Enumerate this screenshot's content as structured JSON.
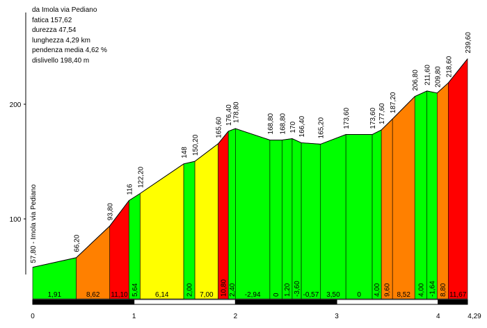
{
  "chart_data": {
    "type": "area",
    "title_lines": [
      "da Imola via Pediano",
      "fatica 157,62",
      "durezza 47,54",
      "lunghezza 4,29 km",
      "pendenza media 4,62 %",
      "dislivello 198,40 m"
    ],
    "start_label": "57,80 - Imola via Pediano",
    "x_ticks": [
      "0",
      "1",
      "2",
      "3",
      "4"
    ],
    "x_end_label": "4,29",
    "y_ticks": [
      "100",
      "200"
    ],
    "ylim": [
      35,
      256
    ],
    "xlim": [
      0,
      4.29
    ],
    "profile": [
      {
        "x": 0.0,
        "alt": 57.8,
        "label": ""
      },
      {
        "x": 0.43,
        "alt": 66.2,
        "label": "66,20"
      },
      {
        "x": 0.76,
        "alt": 93.8,
        "label": "93,80"
      },
      {
        "x": 0.95,
        "alt": 116.0,
        "label": "116"
      },
      {
        "x": 1.06,
        "alt": 122.2,
        "label": "122,20"
      },
      {
        "x": 1.49,
        "alt": 148.0,
        "label": "148"
      },
      {
        "x": 1.6,
        "alt": 150.2,
        "label": "150,20"
      },
      {
        "x": 1.83,
        "alt": 165.6,
        "label": "165,60"
      },
      {
        "x": 1.93,
        "alt": 176.4,
        "label": "176,40"
      },
      {
        "x": 2.0,
        "alt": 178.8,
        "label": "178,80"
      },
      {
        "x": 2.34,
        "alt": 168.8,
        "label": "168,80"
      },
      {
        "x": 2.46,
        "alt": 168.8,
        "label": "168,80"
      },
      {
        "x": 2.56,
        "alt": 170.0,
        "label": "170"
      },
      {
        "x": 2.65,
        "alt": 166.4,
        "label": "166,40"
      },
      {
        "x": 2.84,
        "alt": 165.2,
        "label": "165,20"
      },
      {
        "x": 3.09,
        "alt": 173.6,
        "label": "173,60"
      },
      {
        "x": 3.35,
        "alt": 173.6,
        "label": "173,60"
      },
      {
        "x": 3.44,
        "alt": 177.6,
        "label": "177,60"
      },
      {
        "x": 3.55,
        "alt": 187.2,
        "label": "187,20"
      },
      {
        "x": 3.77,
        "alt": 206.8,
        "label": "206,80"
      },
      {
        "x": 3.89,
        "alt": 211.6,
        "label": "211,60"
      },
      {
        "x": 3.99,
        "alt": 209.8,
        "label": "209,80"
      },
      {
        "x": 4.1,
        "alt": 218.6,
        "label": "218,60"
      },
      {
        "x": 4.29,
        "alt": 239.6,
        "label": "239,60"
      }
    ],
    "segments": [
      {
        "grade": "1,91",
        "color": "#00ff00"
      },
      {
        "grade": "8,62",
        "color": "#ff8000"
      },
      {
        "grade": "11,10",
        "color": "#ff0000"
      },
      {
        "grade": "5,64",
        "color": "#00ff00"
      },
      {
        "grade": "6,14",
        "color": "#ffff00"
      },
      {
        "grade": "2,00",
        "color": "#00ff00"
      },
      {
        "grade": "7,00",
        "color": "#ffff00"
      },
      {
        "grade": "10,80",
        "color": "#ff0000"
      },
      {
        "grade": "2,40",
        "color": "#00ff00"
      },
      {
        "grade": "-2,94",
        "color": "#00ff00"
      },
      {
        "grade": "0",
        "color": "#00ff00"
      },
      {
        "grade": "1,20",
        "color": "#00ff00"
      },
      {
        "grade": "-3,60",
        "color": "#00ff00"
      },
      {
        "grade": "-0,57",
        "color": "#00ff00"
      },
      {
        "grade": "3,50",
        "color": "#00ff00"
      },
      {
        "grade": "0",
        "color": "#00ff00"
      },
      {
        "grade": "4,00",
        "color": "#00ff00"
      },
      {
        "grade": "9,60",
        "color": "#ff8000"
      },
      {
        "grade": "8,52",
        "color": "#ff8000"
      },
      {
        "grade": "4,00",
        "color": "#00ff00"
      },
      {
        "grade": "-1,64",
        "color": "#00ff00"
      },
      {
        "grade": "8,80",
        "color": "#ff8000"
      },
      {
        "grade": "11,67",
        "color": "#ff0000"
      }
    ]
  }
}
